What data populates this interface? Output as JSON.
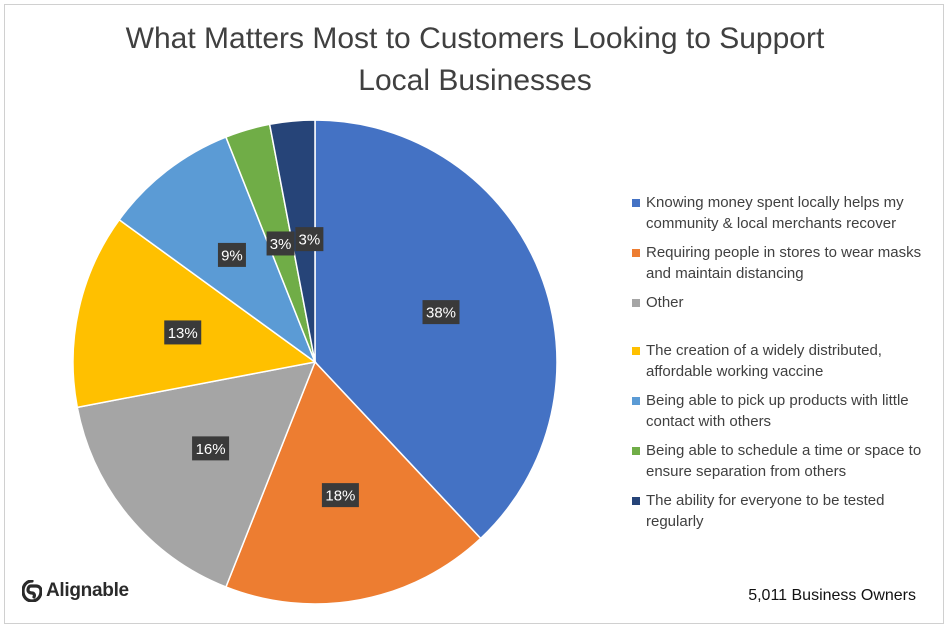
{
  "brand": {
    "name": "Alignable",
    "icon": "alignable-logo-icon"
  },
  "footer_note": "5,011 Business Owners",
  "chart_data": {
    "type": "pie",
    "title": "What Matters Most to Customers Looking to Support Local Businesses",
    "title_lines": [
      "What Matters Most to Customers Looking to Support",
      "Local Businesses"
    ],
    "legend_position": "right",
    "slices": [
      {
        "label": "Knowing money spent locally helps my community & local merchants recover",
        "label_lines": [
          "Knowing money spent locally helps my",
          "community & local merchants recover"
        ],
        "value": 38,
        "display": "38%",
        "color": "#4472C4"
      },
      {
        "label": "Requiring people in stores to wear masks and maintain distancing",
        "label_lines": [
          "Requiring people in stores to wear masks",
          "and maintain distancing"
        ],
        "value": 18,
        "display": "18%",
        "color": "#ED7D31"
      },
      {
        "label": "Other",
        "label_lines": [
          "Other"
        ],
        "value": 16,
        "display": "16%",
        "color": "#A5A5A5"
      },
      {
        "label": "The creation of a widely distributed, affordable working vaccine",
        "label_lines": [
          "The creation of a widely distributed,",
          "affordable working vaccine"
        ],
        "value": 13,
        "display": "13%",
        "color": "#FFC000"
      },
      {
        "label": "Being able to pick up products with little contact with others",
        "label_lines": [
          "Being able to pick up products with little",
          "contact with others"
        ],
        "value": 9,
        "display": "9%",
        "color": "#5B9BD5"
      },
      {
        "label": "Being able to schedule a time or space to ensure separation from others",
        "label_lines": [
          "Being able to schedule a time or space to",
          "ensure separation from others"
        ],
        "value": 3,
        "display": "3%",
        "color": "#70AD47"
      },
      {
        "label": "The ability for everyone to be tested regularly",
        "label_lines": [
          "The ability for everyone to be tested",
          "regularly"
        ],
        "value": 3,
        "display": "3%",
        "color": "#264478"
      }
    ]
  }
}
